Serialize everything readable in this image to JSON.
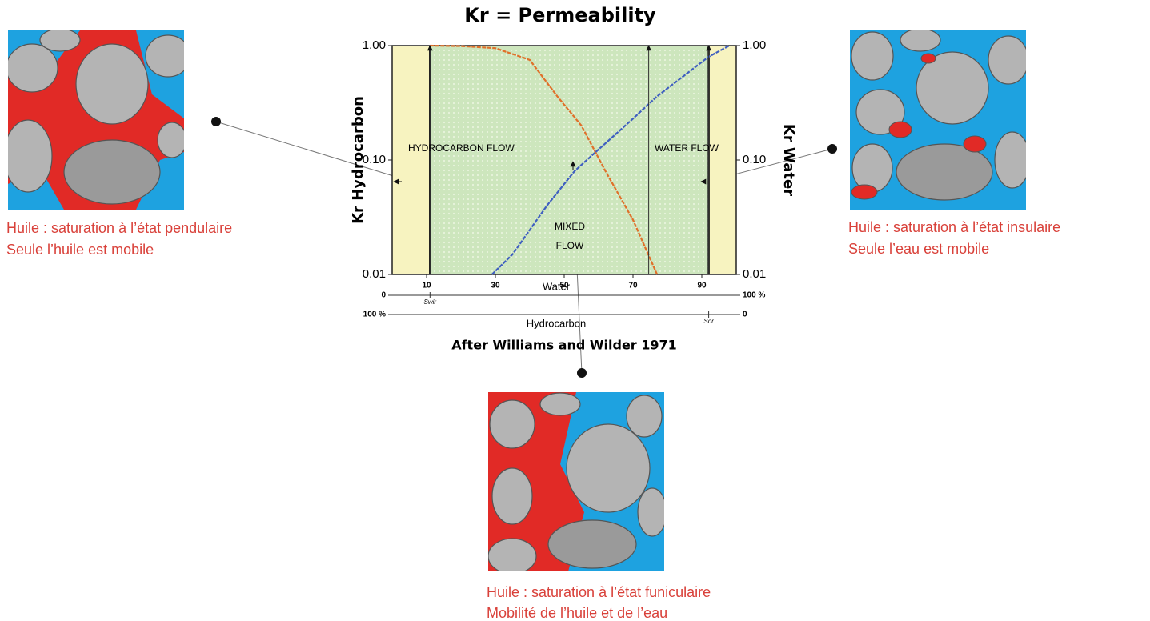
{
  "chart_data": {
    "type": "line",
    "title": "Kr = Permeability",
    "caption": "After Williams and Wilder 1971",
    "y_label": "Kr Hydrocarbon",
    "y2_label": "Kr Water",
    "log_y": true,
    "xlim": [
      0,
      100
    ],
    "xticks": [
      10,
      30,
      50,
      70,
      90
    ],
    "ylim": [
      0.01,
      1
    ],
    "yticks": [
      {
        "value": 1,
        "label": "1.00"
      },
      {
        "value": 0.1,
        "label": "0.10"
      },
      {
        "value": 0.01,
        "label": "0.01"
      }
    ],
    "y2lim": [
      0.01,
      1
    ],
    "y2ticks": [
      {
        "value": 1,
        "label": "1.00"
      },
      {
        "value": 0.1,
        "label": "0.10"
      },
      {
        "value": 0.01,
        "label": "0.01"
      }
    ],
    "series": [
      {
        "color": "#e0702a",
        "x": [
          11,
          20,
          30,
          40,
          48,
          55,
          62,
          70,
          77
        ],
        "values": [
          1.0,
          0.99,
          0.95,
          0.75,
          0.36,
          0.2,
          0.08,
          0.03,
          0.01
        ]
      },
      {
        "color": "#3f5fc0",
        "axis": "y2",
        "x": [
          29,
          35,
          45,
          53,
          62,
          70,
          77,
          85,
          92,
          98
        ],
        "values": [
          0.01,
          0.015,
          0.04,
          0.08,
          0.14,
          0.23,
          0.36,
          0.55,
          0.8,
          1.0
        ]
      }
    ],
    "water_axis": {
      "label": "Water",
      "min_label": "0",
      "max_label": "100 %",
      "marker": {
        "label": "Swir",
        "value": 11
      }
    },
    "hydrocarbon_axis": {
      "label": "Hydrocarbon",
      "min_label": "100 %",
      "max_label": "0",
      "marker": {
        "label": "Sor",
        "value": 92
      }
    },
    "annotations": [
      "HYDROCARBON FLOW",
      "WATER FLOW",
      "MIXED",
      "FLOW"
    ]
  },
  "panels": [
    {
      "line1": "Huile : saturation à l’état pendulaire",
      "line2": "Seule l’huile est mobile"
    },
    {
      "line1": "Huile : saturation à l’état insulaire",
      "line2": "Seule l’eau est mobile"
    },
    {
      "line1": "Huile : saturation à l’état funiculaire",
      "line2": "Mobilité de l’huile et de l’eau"
    }
  ]
}
